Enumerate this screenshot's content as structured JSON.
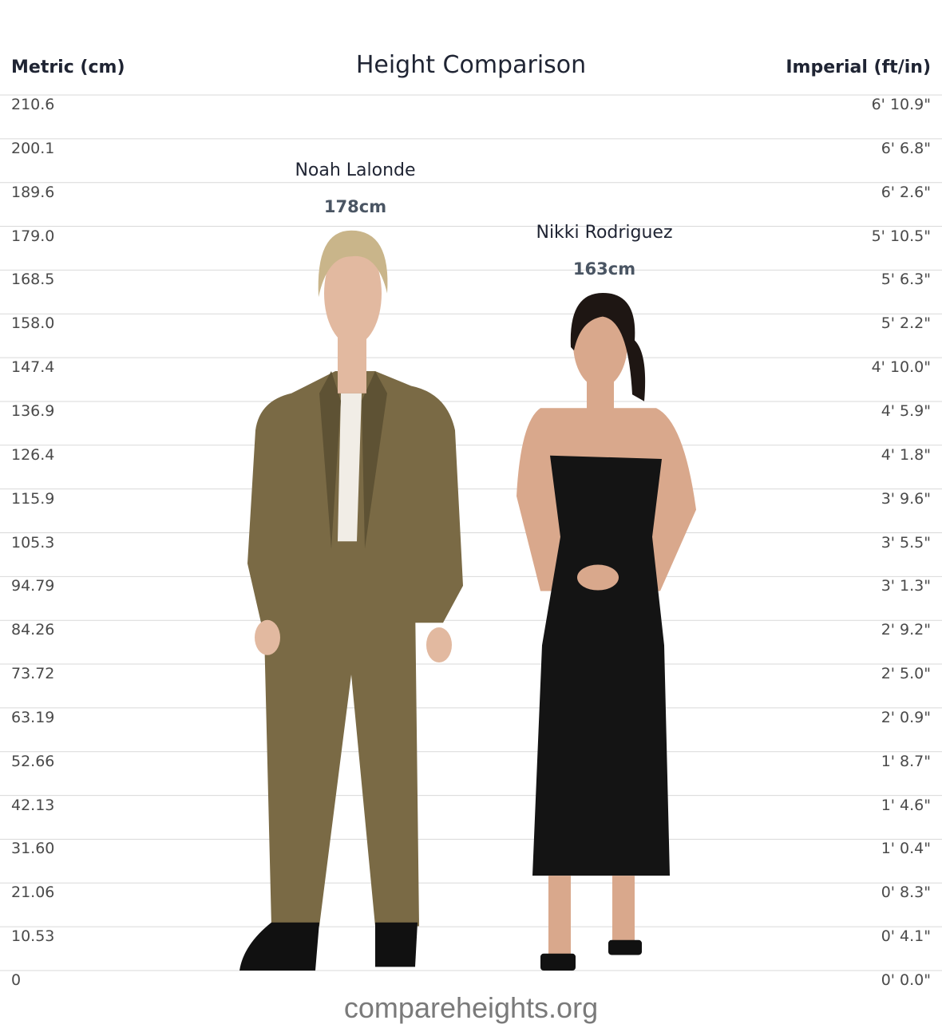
{
  "page": {
    "title": "Height Comparison",
    "metric_header": "Metric (cm)",
    "imperial_header": "Imperial (ft/in)",
    "footer": "compareheights.org"
  },
  "chart_data": {
    "type": "bar",
    "title": "Height Comparison",
    "ylabel_left": "Metric (cm)",
    "ylabel_right": "Imperial (ft/in)",
    "ylim": [
      0,
      210.6
    ],
    "grid": true,
    "metric_ticks": [
      "210.6",
      "200.1",
      "189.6",
      "179.0",
      "168.5",
      "158.0",
      "147.4",
      "136.9",
      "126.4",
      "115.9",
      "105.3",
      "94.79",
      "84.26",
      "73.72",
      "63.19",
      "52.66",
      "42.13",
      "31.60",
      "21.06",
      "10.53",
      "0"
    ],
    "imperial_ticks": [
      "6' 10.9\"",
      "6' 6.8\"",
      "6' 2.6\"",
      "5' 10.5\"",
      "5' 6.3\"",
      "5' 2.2\"",
      "4' 10.0\"",
      "4' 5.9\"",
      "4' 1.8\"",
      "3' 9.6\"",
      "3' 5.5\"",
      "3' 1.3\"",
      "2' 9.2\"",
      "2' 5.0\"",
      "2' 0.9\"",
      "1' 8.7\"",
      "1' 4.6\"",
      "1' 0.4\"",
      "0' 8.3\"",
      "0' 4.1\"",
      "0' 0.0\""
    ],
    "categories": [
      "Noah Lalonde",
      "Nikki Rodriguez"
    ],
    "values": [
      178,
      163
    ],
    "value_labels": [
      "178cm",
      "163cm"
    ],
    "colors": {
      "noah_suit": "#7a6a45",
      "noah_suit_dark": "#5e5234",
      "noah_hair": "#c9b58a",
      "noah_skin": "#e2b9a0",
      "nikki_dress": "#141414",
      "nikki_hair": "#1e1613",
      "nikki_skin": "#d9a88c",
      "shoes": "#111111",
      "grid": "#d9d9d9"
    }
  }
}
